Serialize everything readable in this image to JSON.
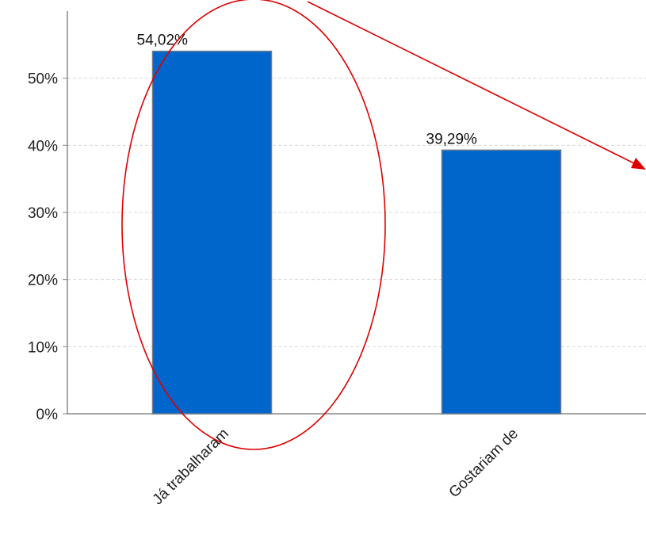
{
  "chart_data": {
    "type": "bar",
    "categories": [
      "Já trabalharam",
      "Gostariam de"
    ],
    "values": [
      54.02,
      39.29
    ],
    "data_labels": [
      "54,02%",
      "39,29%"
    ],
    "title": "",
    "xlabel": "",
    "ylabel": "",
    "ylim": [
      0,
      60
    ],
    "y_ticks": [
      {
        "value": 0,
        "label": "0%"
      },
      {
        "value": 10,
        "label": "10%"
      },
      {
        "value": 20,
        "label": "20%"
      },
      {
        "value": 30,
        "label": "30%"
      },
      {
        "value": 40,
        "label": "40%"
      },
      {
        "value": 50,
        "label": "50%"
      }
    ],
    "grid": true,
    "legend": "none"
  },
  "colors": {
    "bar": "#0066cc",
    "bar_border": "#6e7b8b",
    "annotation": "#dd0000",
    "grid": "#d8d8d8",
    "axis": "#888888"
  },
  "annotations": {
    "highlight": "ellipse around the first bar",
    "arrow": "arrow pointing to the right edge"
  }
}
